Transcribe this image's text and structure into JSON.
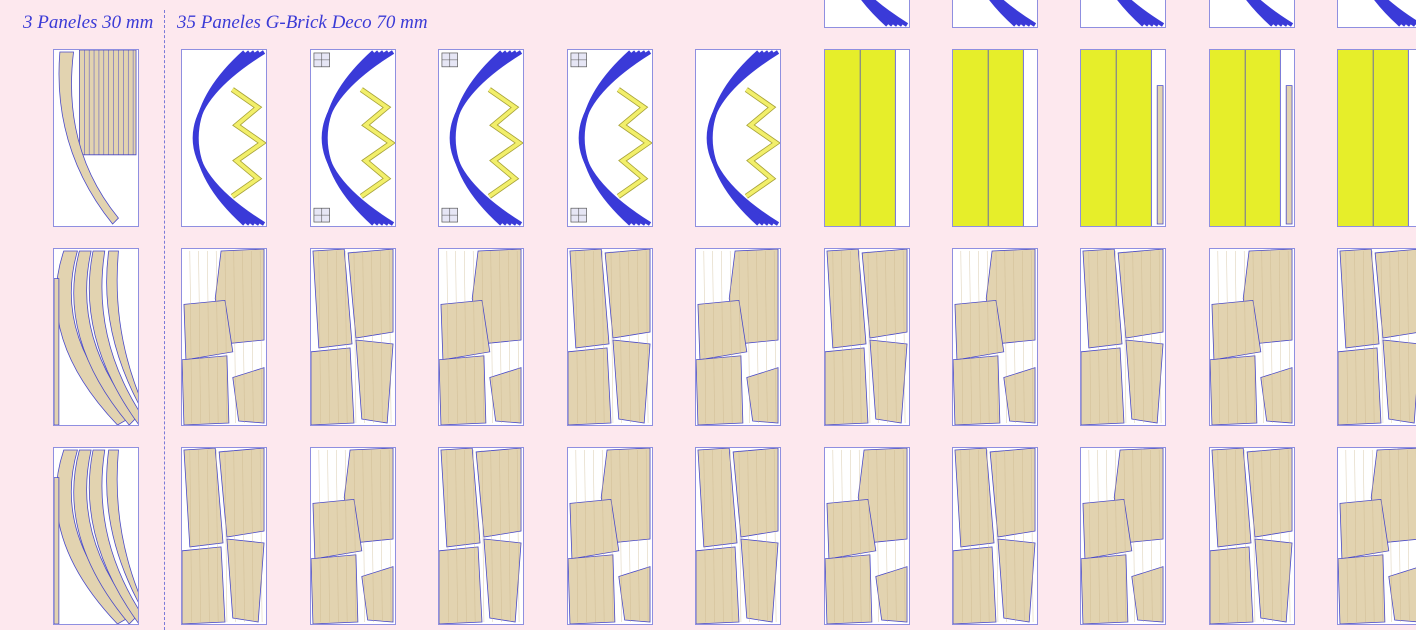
{
  "header": {
    "left_title": "3 Paneles 30 mm",
    "right_title": "35 Paneles G-Brick Deco 70 mm"
  },
  "colors": {
    "background": "#fde8ee",
    "outline": "#4848c8",
    "wood": "#e2d3b0",
    "arc_blue": "#3a3ad8",
    "zigzag_yellow": "#f2ef6a",
    "lime": "#e6ee2a"
  },
  "panels": {
    "left_column": [
      "wood-arc-strips",
      "wood-arc-set",
      "wood-arc-set"
    ],
    "grid_rows": [
      [
        "blue-arcs-zigzag",
        "blue-arcs-zigzag-badges",
        "blue-arcs-zigzag-badges",
        "blue-arcs-zigzag-badges",
        "blue-arcs-zigzag",
        "lime-bars",
        "lime-bars",
        "lime-bars-strip",
        "lime-bars-strip",
        "lime-bars"
      ],
      [
        "wood-cutouts-a",
        "wood-cutouts-b",
        "wood-cutouts-a",
        "wood-cutouts-b",
        "wood-cutouts-a",
        "wood-cutouts-b",
        "wood-cutouts-a",
        "wood-cutouts-b",
        "wood-cutouts-a",
        "wood-cutouts-b"
      ],
      [
        "wood-cutouts-b",
        "wood-cutouts-a",
        "wood-cutouts-b",
        "wood-cutouts-a",
        "wood-cutouts-b",
        "wood-cutouts-a",
        "wood-cutouts-b",
        "wood-cutouts-a",
        "wood-cutouts-b",
        "wood-cutouts-a"
      ]
    ],
    "top_partial_row": [
      "blue-arcs-zigzag",
      "blue-arcs-zigzag",
      "blue-arcs-zigzag",
      "blue-arcs-zigzag",
      "blue-arcs-zigzag"
    ]
  }
}
